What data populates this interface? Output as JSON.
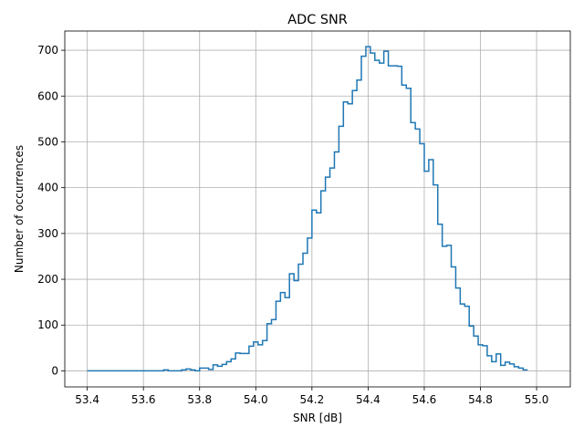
{
  "chart_data": {
    "type": "histogram-step",
    "title": "ADC SNR",
    "xlabel": "SNR [dB]",
    "ylabel": "Number of occurrences",
    "xlim": [
      53.32,
      55.12
    ],
    "ylim": [
      -35,
      742
    ],
    "xticks": [
      53.4,
      53.6,
      53.8,
      54.0,
      54.2,
      54.4,
      54.6,
      54.8,
      55.0
    ],
    "xtick_labels": [
      "53.4",
      "53.6",
      "53.8",
      "54.0",
      "54.2",
      "54.4",
      "54.6",
      "54.8",
      "55.0"
    ],
    "yticks": [
      0,
      100,
      200,
      300,
      400,
      500,
      600,
      700
    ],
    "ytick_labels": [
      "0",
      "100",
      "200",
      "300",
      "400",
      "500",
      "600",
      "700"
    ],
    "grid": true,
    "color": "#1f77b4",
    "bin_start": 53.4,
    "bin_width": 0.016,
    "counts": [
      0,
      0,
      0,
      0,
      0,
      0,
      0,
      0,
      0,
      0,
      0,
      0,
      0,
      0,
      0,
      0,
      0,
      2,
      0,
      0,
      0,
      2,
      4,
      2,
      0,
      6,
      6,
      3,
      13,
      10,
      14,
      20,
      26,
      39,
      38,
      38,
      54,
      63,
      57,
      66,
      103,
      112,
      152,
      171,
      160,
      212,
      197,
      233,
      257,
      290,
      351,
      345,
      393,
      423,
      443,
      478,
      534,
      587,
      583,
      612,
      635,
      687,
      708,
      694,
      678,
      672,
      698,
      666,
      666,
      665,
      624,
      617,
      542,
      528,
      496,
      436,
      461,
      406,
      320,
      272,
      274,
      227,
      181,
      146,
      141,
      98,
      76,
      57,
      55,
      33,
      20,
      37,
      12,
      19,
      15,
      9,
      6,
      2
    ]
  }
}
